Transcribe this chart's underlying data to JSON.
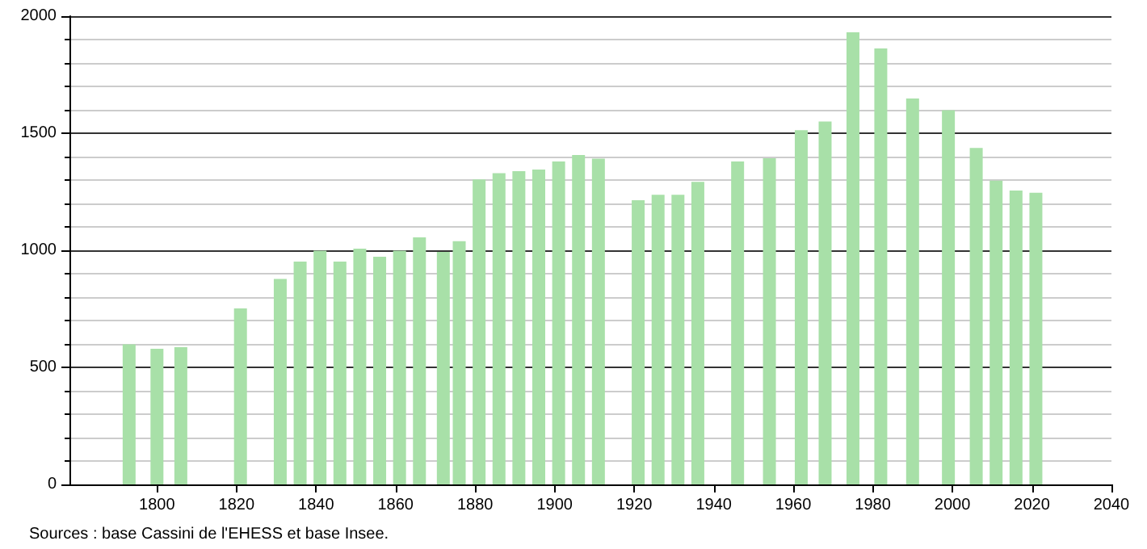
{
  "chart_data": {
    "type": "bar",
    "color": "#a8e0a8",
    "x": [
      1793,
      1800,
      1806,
      1821,
      1831,
      1836,
      1841,
      1846,
      1851,
      1856,
      1861,
      1866,
      1872,
      1876,
      1881,
      1886,
      1891,
      1896,
      1901,
      1906,
      1911,
      1921,
      1926,
      1931,
      1936,
      1946,
      1954,
      1962,
      1968,
      1975,
      1982,
      1990,
      1999,
      2006,
      2011,
      2016,
      2021
    ],
    "values": [
      598,
      579,
      586,
      752,
      878,
      952,
      998,
      952,
      1007,
      972,
      998,
      1055,
      993,
      1039,
      1303,
      1329,
      1338,
      1345,
      1379,
      1407,
      1391,
      1214,
      1237,
      1237,
      1292,
      1379,
      1393,
      1513,
      1550,
      1931,
      1862,
      1648,
      1598,
      1437,
      1297,
      1255,
      1246
    ],
    "xlim": [
      1778,
      2040
    ],
    "xticks": [
      1800,
      1820,
      1840,
      1860,
      1880,
      1900,
      1920,
      1940,
      1960,
      1980,
      2000,
      2020,
      2040
    ],
    "ylim": [
      0,
      2000
    ],
    "yticks": [
      0,
      500,
      1000,
      1500,
      2000
    ],
    "grid": "y",
    "annotations": [
      "Sources : base Cassini de l'EHESS et base Insee."
    ]
  }
}
